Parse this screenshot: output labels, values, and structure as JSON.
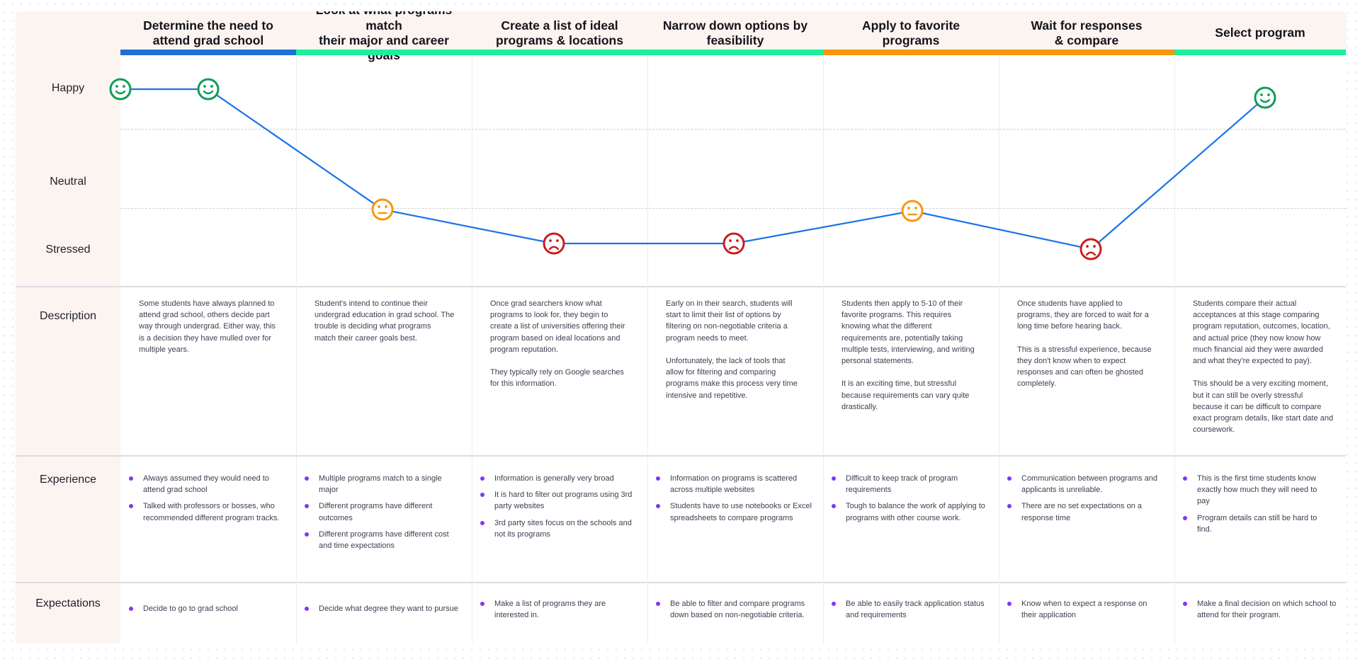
{
  "rows": {
    "happy": "Happy",
    "neutral": "Neutral",
    "stressed": "Stressed",
    "description": "Description",
    "experience": "Experience",
    "expectations": "Expectations"
  },
  "colors": {
    "blue": "#1e6fd9",
    "green": "#1cf09a",
    "orange": "#f7960f",
    "line": "#1a73e8",
    "happy_face": "#0f9d58",
    "neutral_face": "#f7960f",
    "stressed_face": "#c81e1e",
    "bullet": "#7c3aed"
  },
  "stages": [
    {
      "title": "Determine the need to\nattend grad school",
      "bar_color": "#1e6fd9",
      "description": "Some students have always planned to\nattend grad school, others decide part\nway through undergrad. Either way, this\nis a decision they have mulled over for\nmultiple years.",
      "experience": [
        "Always assumed they would need to\nattend grad school",
        "Talked with professors or bosses, who\nrecommended different program tracks."
      ],
      "expectations": [
        "Decide to go to grad school"
      ]
    },
    {
      "title": "Look at what programs match\ntheir major and career goals",
      "bar_color": "#1cf09a",
      "description": "Student's intend to continue their\nundergrad education in grad school. The\ntrouble is deciding what programs\nmatch their career goals best.",
      "experience": [
        "Multiple programs match to a single\nmajor",
        "Different programs have different\noutcomes",
        "Different programs have different cost\nand time expectations"
      ],
      "expectations": [
        "Decide what degree they want to pursue"
      ]
    },
    {
      "title": "Create a list of ideal\nprograms & locations",
      "bar_color": "#1cf09a",
      "description": "Once grad searchers know what\nprograms to look for, they begin to\ncreate a list of universities offering their\nprogram based on ideal locations and\nprogram reputation.\n\nThey typically rely on Google searches\nfor this information.",
      "experience": [
        "Information is generally very broad",
        "It is hard to filter out programs using 3rd\nparty websites",
        "3rd party sites focus on the schools and\nnot its programs"
      ],
      "expectations": [
        "Make a list of programs they are\ninterested in."
      ]
    },
    {
      "title": "Narrow down options by\nfeasibility",
      "bar_color": "#1cf09a",
      "description": "Early on in their search, students will\nstart to limit their list of options by\nfiltering on non-negotiable criteria a\nprogram needs to meet.\n\nUnfortunately, the lack of tools that\nallow for filtering and comparing\nprograms make this process very time\nintensive and repetitive.",
      "experience": [
        "Information on programs is scattered\nacross multiple websites",
        "Students have to use notebooks or Excel\nspreadsheets to compare programs"
      ],
      "expectations": [
        "Be able to filter and compare programs\ndown based on non-negotiable criteria."
      ]
    },
    {
      "title": "Apply to favorite\nprograms",
      "bar_color": "#f7960f",
      "description": "Students then apply to 5-10 of their\nfavorite programs. This requires\nknowing what the different\nrequirements are, potentially taking\nmultiple tests, interviewing, and writing\npersonal statements.\n\nIt is an exciting time, but stressful\nbecause requirements can vary quite\ndrastically.",
      "experience": [
        "Difficult to keep track of program\nrequirements",
        "Tough to balance the work of applying to\nprograms with other course work."
      ],
      "expectations": [
        "Be able to easily track application status\nand requirements"
      ]
    },
    {
      "title": "Wait for responses\n& compare",
      "bar_color": "#f7960f",
      "description": "Once students have applied to\nprograms, they are forced to wait for a\nlong time before hearing back.\n\nThis is a stressful experience, because\nthey don't know when to expect\nresponses and can often be ghosted\ncompletely.",
      "experience": [
        "Communication between programs and\napplicants is unreliable.",
        "There are no set expectations on a\nresponse time"
      ],
      "expectations": [
        "Know when to expect a response on\ntheir application"
      ]
    },
    {
      "title": "Select program",
      "bar_color": "#1cf09a",
      "description": "Students compare their actual\nacceptances at this stage comparing\nprogram reputation, outcomes, location,\nand actual price (they now know how\nmuch financial aid they were awarded\nand what they're expected to pay).\n\nThis should be a very exciting moment,\nbut it can still be overly stressful\nbecause it can be difficult to compare\nexact program details, like start date and\ncoursework.",
      "experience": [
        "This is the first time students know\nexactly how much they will need to\npay",
        "Program details can still be hard to\nfind."
      ],
      "expectations": [
        "Make a final decision on which school to\nattend for their program."
      ]
    }
  ],
  "emotion_points": [
    {
      "stage": 1,
      "mood": "happy",
      "icon": "happy-face-icon"
    },
    {
      "stage": 1,
      "mood": "happy",
      "icon": "happy-face-icon"
    },
    {
      "stage": 2,
      "mood": "neutral",
      "icon": "neutral-face-icon"
    },
    {
      "stage": 3,
      "mood": "stressed",
      "icon": "stressed-face-icon"
    },
    {
      "stage": 4,
      "mood": "stressed",
      "icon": "stressed-face-icon"
    },
    {
      "stage": 5,
      "mood": "neutral",
      "icon": "neutral-face-icon"
    },
    {
      "stage": 6,
      "mood": "stressed",
      "icon": "stressed-face-icon"
    },
    {
      "stage": 7,
      "mood": "happy",
      "icon": "happy-face-icon"
    }
  ]
}
